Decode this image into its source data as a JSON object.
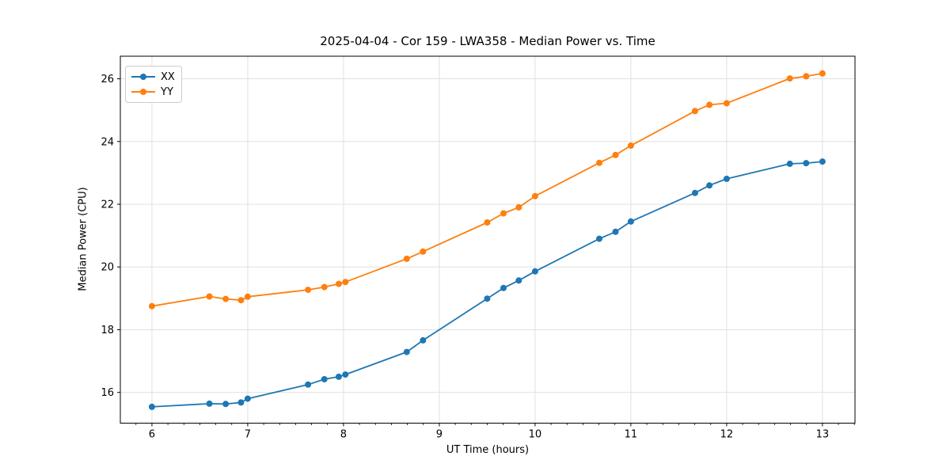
{
  "chart_data": {
    "type": "line",
    "title": "2025-04-04 - Cor 159 - LWA358 - Median Power vs. Time",
    "xlabel": "UT Time (hours)",
    "ylabel": "Median Power (CPU)",
    "xlim": [
      5.67,
      13.34
    ],
    "ylim": [
      15.02,
      26.72
    ],
    "xticks": [
      6,
      7,
      8,
      9,
      10,
      11,
      12,
      13
    ],
    "yticks": [
      16,
      18,
      20,
      22,
      24,
      26
    ],
    "x_minor_tick_step": 0.166667,
    "grid": true,
    "grid_color": "#e0e0e0",
    "spine_color": "#000000",
    "background": "#ffffff",
    "legend_position": "upper-left",
    "x": [
      6.0,
      6.6,
      6.77,
      6.93,
      7.0,
      7.63,
      7.8,
      7.95,
      8.02,
      8.66,
      8.83,
      9.5,
      9.67,
      9.83,
      10.0,
      10.67,
      10.84,
      11.0,
      11.67,
      11.82,
      12.0,
      12.66,
      12.83,
      13.0
    ],
    "series": [
      {
        "name": "XX",
        "color": "#1f77b4",
        "values": [
          15.54,
          15.64,
          15.63,
          15.68,
          15.8,
          16.25,
          16.42,
          16.5,
          16.57,
          17.29,
          17.66,
          18.99,
          19.33,
          19.57,
          19.86,
          20.9,
          21.12,
          21.45,
          22.36,
          22.6,
          22.81,
          23.29,
          23.31,
          23.36
        ]
      },
      {
        "name": "YY",
        "color": "#ff7f0e",
        "values": [
          18.75,
          19.06,
          18.98,
          18.94,
          19.05,
          19.27,
          19.36,
          19.46,
          19.52,
          20.26,
          20.49,
          21.42,
          21.71,
          21.9,
          22.26,
          23.32,
          23.57,
          23.87,
          24.97,
          25.17,
          25.22,
          26.01,
          26.08,
          26.17
        ]
      }
    ]
  }
}
